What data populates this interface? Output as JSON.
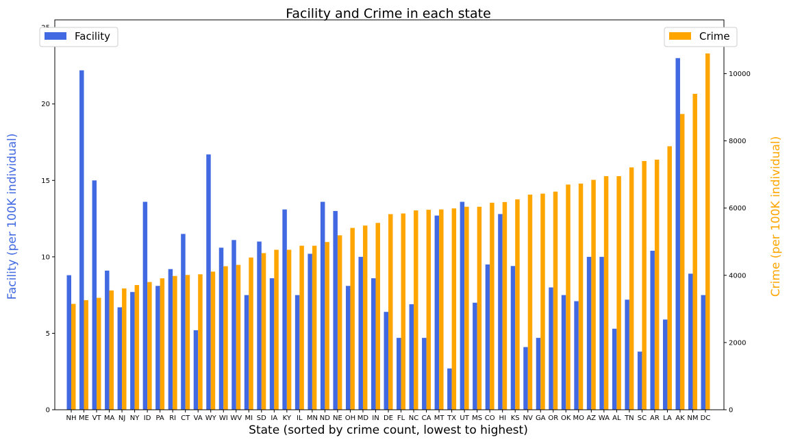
{
  "chart_data": {
    "type": "bar",
    "title": "Facility and Crime in each state",
    "xlabel": "State (sorted by crime count, lowest to highest)",
    "ylabel_left": "Facility (per 100K individual)",
    "ylabel_right": "Crime (per 100K individual)",
    "ylim_left": [
      0,
      25.5
    ],
    "ylim_right": [
      0,
      11600
    ],
    "yticks_left": [
      0,
      5,
      10,
      15,
      20,
      25
    ],
    "yticks_right": [
      0,
      2000,
      4000,
      6000,
      8000,
      10000
    ],
    "grid": false,
    "categories": [
      "NH",
      "ME",
      "VT",
      "MA",
      "NJ",
      "NY",
      "ID",
      "PA",
      "RI",
      "CT",
      "VA",
      "WY",
      "WI",
      "WV",
      "MI",
      "SD",
      "IA",
      "KY",
      "IL",
      "MN",
      "ND",
      "NE",
      "OH",
      "MD",
      "IN",
      "DE",
      "FL",
      "NC",
      "CA",
      "MT",
      "TX",
      "UT",
      "MS",
      "CO",
      "HI",
      "KS",
      "NV",
      "GA",
      "OR",
      "OK",
      "MO",
      "AZ",
      "WA",
      "AL",
      "TN",
      "SC",
      "AR",
      "LA",
      "AK",
      "NM",
      "DC"
    ],
    "series": [
      {
        "name": "Facility",
        "axis": "left",
        "color": "#4169e1",
        "values": [
          8.8,
          22.2,
          15.0,
          9.1,
          6.7,
          7.7,
          13.6,
          8.1,
          9.2,
          11.5,
          5.2,
          16.7,
          10.6,
          11.1,
          7.5,
          11.0,
          8.6,
          13.1,
          7.5,
          10.2,
          13.6,
          13.0,
          8.1,
          10.0,
          8.6,
          6.4,
          4.7,
          6.9,
          4.7,
          12.7,
          2.7,
          13.6,
          7.0,
          9.5,
          12.8,
          9.4,
          4.1,
          4.7,
          8.0,
          7.5,
          7.1,
          10.0,
          10.0,
          5.3,
          7.2,
          3.8,
          10.4,
          5.9,
          23.0,
          8.9,
          7.5
        ]
      },
      {
        "name": "Crime",
        "axis": "right",
        "color": "#ffa500",
        "values": [
          3150,
          3260,
          3330,
          3550,
          3610,
          3710,
          3800,
          3910,
          3980,
          4010,
          4030,
          4110,
          4270,
          4310,
          4530,
          4660,
          4760,
          4760,
          4880,
          4880,
          4990,
          5190,
          5410,
          5480,
          5560,
          5820,
          5840,
          5930,
          5950,
          5960,
          5990,
          6040,
          6040,
          6160,
          6180,
          6260,
          6400,
          6430,
          6490,
          6700,
          6730,
          6840,
          6950,
          6950,
          7210,
          7400,
          7440,
          7840,
          8800,
          9400,
          10600
        ]
      }
    ],
    "legend": [
      {
        "label": "Facility",
        "placement": "upper-left",
        "color": "#4169e1"
      },
      {
        "label": "Crime",
        "placement": "upper-right",
        "color": "#ffa500"
      }
    ]
  }
}
